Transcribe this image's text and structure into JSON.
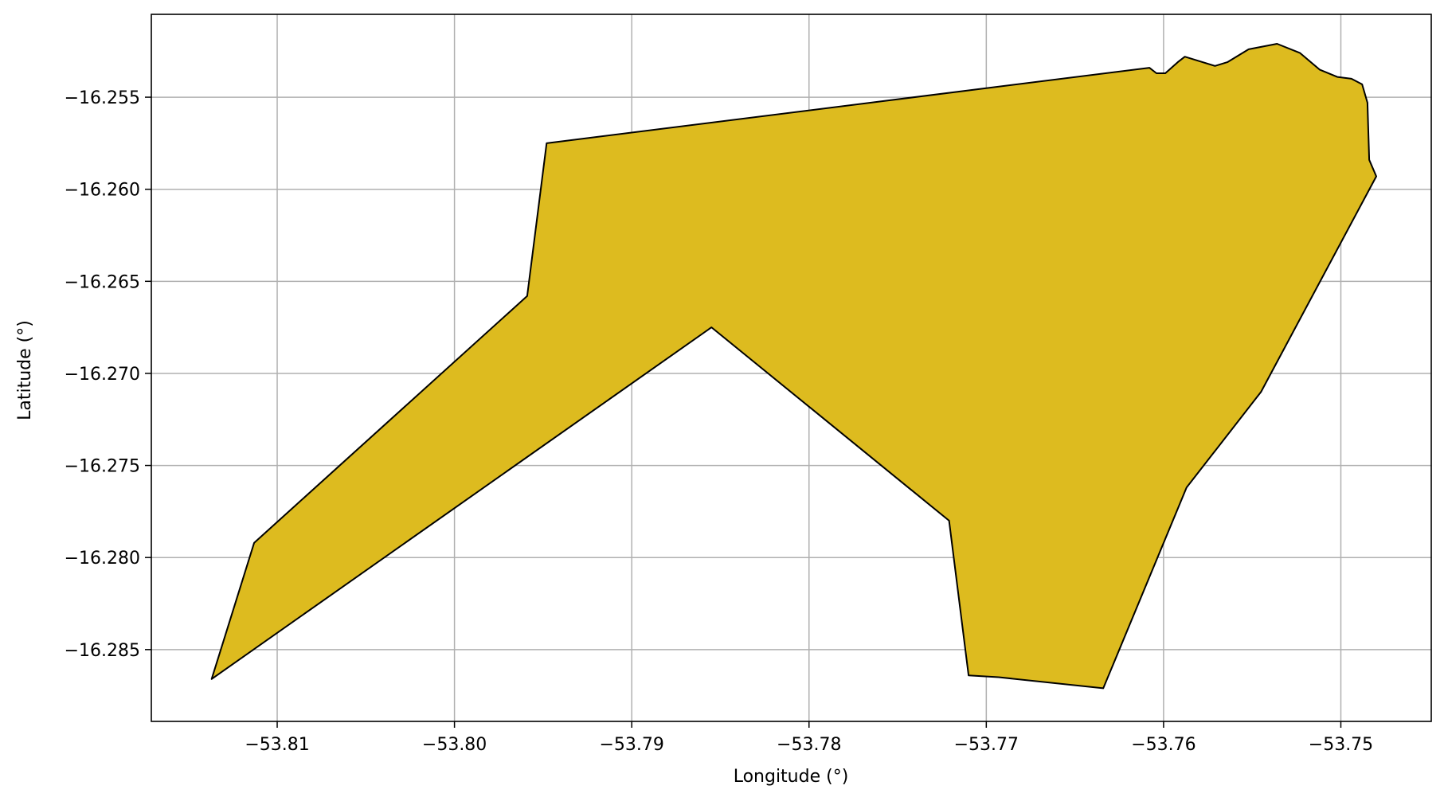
{
  "chart_data": {
    "type": "polygon-map",
    "xlabel": "Longitude (°)",
    "ylabel": "Latitude (°)",
    "xlim": [
      -53.8171,
      -53.7449
    ],
    "ylim": [
      -16.2889,
      -16.2505
    ],
    "grid": true,
    "fill_color": "#DDBB1F",
    "edge_color": "#000000",
    "grid_color": "#b0b0b0",
    "x_ticks": [
      {
        "value": -53.81,
        "label": "−53.81"
      },
      {
        "value": -53.8,
        "label": "−53.80"
      },
      {
        "value": -53.79,
        "label": "−53.79"
      },
      {
        "value": -53.78,
        "label": "−53.78"
      },
      {
        "value": -53.77,
        "label": "−53.77"
      },
      {
        "value": -53.76,
        "label": "−53.76"
      },
      {
        "value": -53.75,
        "label": "−53.75"
      }
    ],
    "y_ticks": [
      {
        "value": -16.255,
        "label": "−16.255"
      },
      {
        "value": -16.26,
        "label": "−16.260"
      },
      {
        "value": -16.265,
        "label": "−16.265"
      },
      {
        "value": -16.27,
        "label": "−16.270"
      },
      {
        "value": -16.275,
        "label": "−16.275"
      },
      {
        "value": -16.28,
        "label": "−16.280"
      },
      {
        "value": -16.285,
        "label": "−16.285"
      }
    ],
    "polygon": [
      [
        -53.8137,
        -16.2866
      ],
      [
        -53.8113,
        -16.2792
      ],
      [
        -53.7959,
        -16.2658
      ],
      [
        -53.7948,
        -16.2575
      ],
      [
        -53.7608,
        -16.2534
      ],
      [
        -53.7604,
        -16.2537
      ],
      [
        -53.7599,
        -16.2537
      ],
      [
        -53.7592,
        -16.2531
      ],
      [
        -53.7588,
        -16.2528
      ],
      [
        -53.7571,
        -16.2533
      ],
      [
        -53.7564,
        -16.2531
      ],
      [
        -53.7552,
        -16.2524
      ],
      [
        -53.7536,
        -16.2521
      ],
      [
        -53.7523,
        -16.2526
      ],
      [
        -53.7512,
        -16.2535
      ],
      [
        -53.7502,
        -16.2539
      ],
      [
        -53.7494,
        -16.254
      ],
      [
        -53.7488,
        -16.2543
      ],
      [
        -53.7485,
        -16.2553
      ],
      [
        -53.7484,
        -16.2584
      ],
      [
        -53.748,
        -16.2593
      ],
      [
        -53.7545,
        -16.271
      ],
      [
        -53.7587,
        -16.2762
      ],
      [
        -53.7634,
        -16.2871
      ],
      [
        -53.7693,
        -16.2865
      ],
      [
        -53.771,
        -16.2864
      ],
      [
        -53.7721,
        -16.278
      ],
      [
        -53.7855,
        -16.2675
      ],
      [
        -53.8137,
        -16.2866
      ]
    ]
  }
}
